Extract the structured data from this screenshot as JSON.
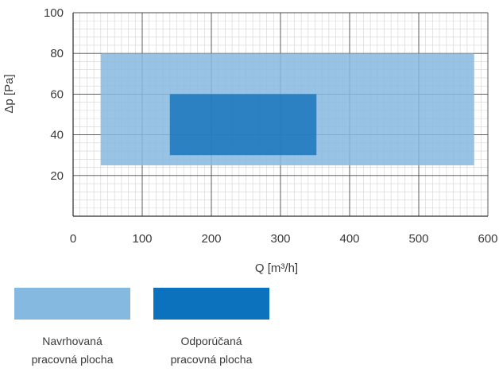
{
  "chart_data": {
    "type": "area",
    "xlabel": "Q [m³/h]",
    "ylabel": "Δp [Pa]",
    "xlim": [
      0,
      600
    ],
    "ylim": [
      0,
      100
    ],
    "x_ticks": [
      "0",
      "100",
      "200",
      "300",
      "400",
      "500",
      "600"
    ],
    "y_ticks": [
      "20",
      "40",
      "60",
      "80",
      "100"
    ],
    "grid": true,
    "legend_placement": "bottom-left",
    "series": [
      {
        "name": "Navrhovaná pracovná plocha",
        "x_range": [
          40,
          580
        ],
        "y_range": [
          25,
          80
        ],
        "color": "#86b9e0"
      },
      {
        "name": "Odporúčaná pracovná plocha",
        "x_range": [
          140,
          352
        ],
        "y_range": [
          30,
          60
        ],
        "color": "#0d6eb7"
      }
    ]
  },
  "legend": {
    "items": [
      {
        "line1": "Navrhovaná",
        "line2": "pracovná plocha",
        "color": "#86b9e0"
      },
      {
        "line1": "Odporúčaná",
        "line2": "pracovná plocha",
        "color": "#0c72bd"
      }
    ]
  }
}
